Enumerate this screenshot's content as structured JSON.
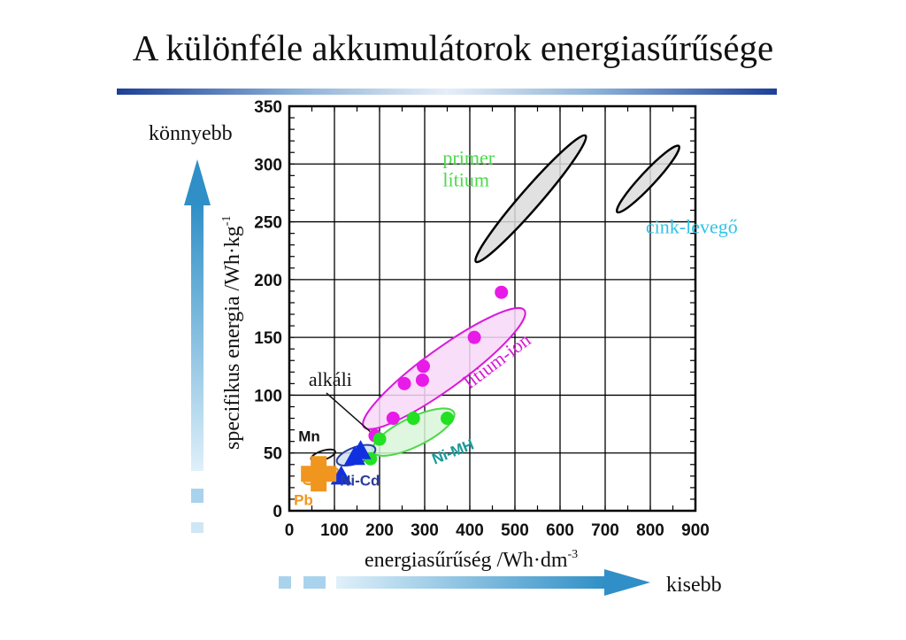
{
  "title": "A különféle akkumulátorok energiasűrűsége",
  "side_labels": {
    "up": "könnyebb",
    "right": "kisebb"
  },
  "colors": {
    "title_rule": "#1d3f97",
    "arrows": "#3aa0d2",
    "grid": "#000000",
    "primary_lithium": "#4cd94c",
    "zinc_air": "#33c3e6",
    "li_ion": "#d81bd8",
    "ni_mh": "#1a9a9a",
    "ni_cd": "#2a3c9c",
    "pb": "#f0961e",
    "alkaline_marker": "#1030e0"
  },
  "chart_data": {
    "type": "scatter",
    "xlabel": "energiasűrűség /Wh·dm",
    "xlabel_sup": "-3",
    "ylabel": "specifikus energia /Wh·kg",
    "ylabel_sup": "-1",
    "xlim": [
      0,
      900
    ],
    "ylim": [
      0,
      350
    ],
    "xticks": [
      0,
      100,
      200,
      300,
      400,
      500,
      600,
      700,
      800,
      900
    ],
    "yticks": [
      0,
      50,
      100,
      150,
      200,
      250,
      300,
      350
    ],
    "grid": true,
    "regions": [
      {
        "name": "primer lítium",
        "label_lines": [
          "primer",
          "lítium"
        ],
        "color": "#4cd94c",
        "fill": "#dcdcdc",
        "cx": 535,
        "cy": 270,
        "rx": 185,
        "ry": 22,
        "angle": 49,
        "label_at": [
          340,
          300
        ]
      },
      {
        "name": "cink-levegő",
        "color": "#33c3e6",
        "fill": "#dcdcdc",
        "cx": 795,
        "cy": 287,
        "rx": 100,
        "ry": 16,
        "angle": 47,
        "label_at": [
          790,
          240
        ]
      },
      {
        "name": "lítium-ion",
        "color": "#d81bd8",
        "fill": "#f8d8f8",
        "cx": 343,
        "cy": 123,
        "rx": 220,
        "ry": 44,
        "angle": 36,
        "label_at": [
          400,
          105
        ]
      },
      {
        "name": "Ni-MH",
        "color": "#1a9a9a",
        "fill": "#d8f6d8",
        "edge": "#4cd94c",
        "cx": 275,
        "cy": 68,
        "rx": 100,
        "ry": 32,
        "angle": 26,
        "label_at": [
          322,
          40
        ]
      },
      {
        "name": "Ni-Cd",
        "color": "#2a3c9c",
        "fill": "#cfe0ee",
        "cx": 148,
        "cy": 48,
        "rx": 45,
        "ry": 18,
        "angle": 20,
        "label_at": [
          112,
          22
        ]
      },
      {
        "name": "Mn",
        "color": "#111111",
        "fill": "none",
        "cx": 75,
        "cy": 48,
        "rx": 28,
        "ry": 10,
        "angle": 18,
        "label_at": [
          20,
          60
        ]
      },
      {
        "name": "Pb",
        "color": "#f0961e",
        "fill": "#f7c98c",
        "edge": "#f0961e",
        "cx": 70,
        "cy": 30,
        "rx": 40,
        "ry": 13,
        "angle": 20,
        "label_at": [
          10,
          5
        ]
      }
    ],
    "series": [
      {
        "name": "lítium-ion",
        "marker": "circle",
        "color": "#e81ae8",
        "x": [
          190,
          230,
          255,
          295,
          297,
          410,
          470
        ],
        "y": [
          65,
          80,
          110,
          113,
          125,
          150,
          189
        ]
      },
      {
        "name": "Ni-MH",
        "marker": "circle",
        "color": "#22e022",
        "x": [
          180,
          200,
          275,
          350
        ],
        "y": [
          45,
          62,
          80,
          80
        ]
      },
      {
        "name": "alkáli",
        "marker": "triangle",
        "color": "#1030e0",
        "x": [
          115,
          145,
          158
        ],
        "y": [
          30,
          47,
          52
        ]
      },
      {
        "name": "Pb",
        "marker": "plus",
        "color": "#f0961e",
        "x": [
          65
        ],
        "y": [
          32
        ]
      }
    ],
    "annotations": [
      {
        "text": "alkáli",
        "label_at": [
          43,
          108
        ],
        "points_to": [
          195,
          63
        ]
      }
    ]
  }
}
